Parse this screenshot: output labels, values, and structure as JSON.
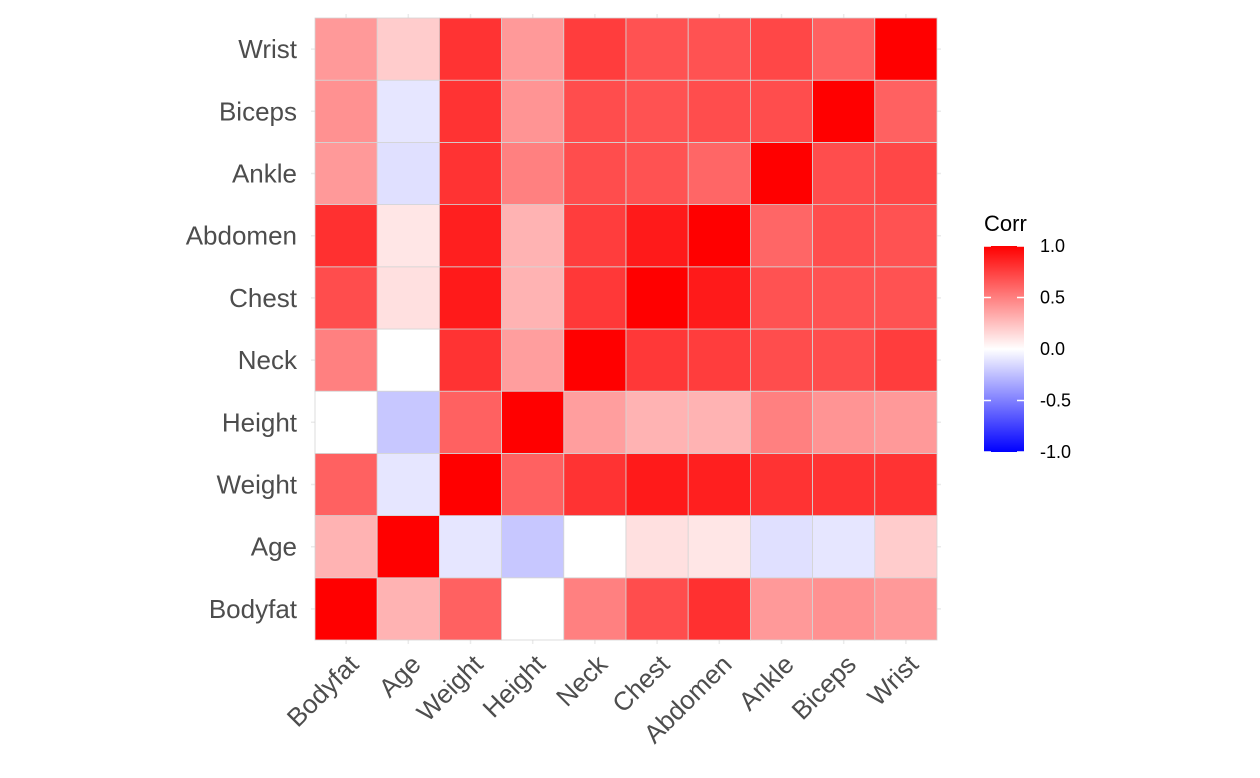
{
  "chart_data": {
    "type": "heatmap",
    "x_categories": [
      "Bodyfat",
      "Age",
      "Weight",
      "Height",
      "Neck",
      "Chest",
      "Abdomen",
      "Ankle",
      "Biceps",
      "Wrist"
    ],
    "y_categories": [
      "Bodyfat",
      "Age",
      "Weight",
      "Height",
      "Neck",
      "Chest",
      "Abdomen",
      "Ankle",
      "Biceps",
      "Wrist"
    ],
    "matrix": [
      [
        1.0,
        0.3,
        0.62,
        0.0,
        0.5,
        0.7,
        0.81,
        0.4,
        0.43,
        0.4
      ],
      [
        0.3,
        1.0,
        -0.1,
        -0.22,
        0.0,
        0.12,
        0.1,
        -0.12,
        -0.1,
        0.2
      ],
      [
        0.62,
        -0.1,
        1.0,
        0.62,
        0.8,
        0.9,
        0.88,
        0.8,
        0.8,
        0.8
      ],
      [
        0.0,
        -0.22,
        0.62,
        1.0,
        0.38,
        0.3,
        0.3,
        0.5,
        0.42,
        0.4
      ],
      [
        0.5,
        0.0,
        0.8,
        0.38,
        1.0,
        0.78,
        0.76,
        0.7,
        0.7,
        0.76
      ],
      [
        0.7,
        0.12,
        0.9,
        0.3,
        0.78,
        1.0,
        0.9,
        0.68,
        0.68,
        0.68
      ],
      [
        0.81,
        0.1,
        0.88,
        0.3,
        0.76,
        0.9,
        1.0,
        0.6,
        0.7,
        0.68
      ],
      [
        0.4,
        -0.12,
        0.8,
        0.5,
        0.7,
        0.68,
        0.6,
        1.0,
        0.7,
        0.72
      ],
      [
        0.43,
        -0.1,
        0.8,
        0.42,
        0.7,
        0.68,
        0.7,
        0.7,
        1.0,
        0.62
      ],
      [
        0.4,
        0.2,
        0.8,
        0.4,
        0.76,
        0.68,
        0.68,
        0.72,
        0.62,
        1.0
      ]
    ],
    "legend": {
      "title": "Corr",
      "ticks": [
        "1.0",
        "0.5",
        "0.0",
        "-0.5",
        "-1.0"
      ],
      "range": [
        -1,
        1
      ]
    },
    "colors": {
      "low": "#0000FF",
      "mid": "#FFFFFF",
      "high": "#FF0000"
    }
  }
}
